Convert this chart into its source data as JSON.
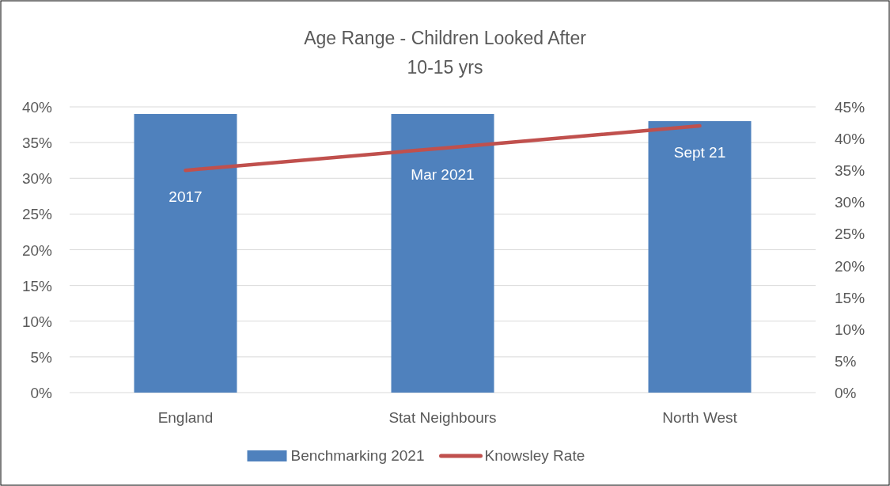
{
  "chart_data": {
    "type": "bar",
    "title": "Age Range - Children Looked After",
    "subtitle": "10-15 yrs",
    "categories": [
      "England",
      "Stat Neighbours",
      "North West"
    ],
    "series": [
      {
        "name": "Benchmarking 2021",
        "color": "#4f81bd",
        "values": [
          39,
          39,
          38
        ]
      },
      {
        "name": "Knowsley Rate",
        "type": "line",
        "axis": "y2",
        "color": "#c0504d",
        "values": [
          35,
          38.5,
          42
        ]
      }
    ],
    "ylim": [
      0,
      40
    ],
    "yticks": [
      {
        "value": 0,
        "label": "0%"
      },
      {
        "value": 5,
        "label": "5%"
      },
      {
        "value": 10,
        "label": "10%"
      },
      {
        "value": 15,
        "label": "15%"
      },
      {
        "value": 20,
        "label": "20%"
      },
      {
        "value": 25,
        "label": "25%"
      },
      {
        "value": 30,
        "label": "30%"
      },
      {
        "value": 35,
        "label": "35%"
      },
      {
        "value": 40,
        "label": "40%"
      }
    ],
    "y2lim": [
      0,
      45
    ],
    "y2ticks": [
      {
        "value": 0,
        "label": "0%"
      },
      {
        "value": 5,
        "label": "5%"
      },
      {
        "value": 10,
        "label": "10%"
      },
      {
        "value": 15,
        "label": "15%"
      },
      {
        "value": 20,
        "label": "20%"
      },
      {
        "value": 25,
        "label": "25%"
      },
      {
        "value": 30,
        "label": "30%"
      },
      {
        "value": 35,
        "label": "35%"
      },
      {
        "value": 40,
        "label": "40%"
      },
      {
        "value": 45,
        "label": "45%"
      }
    ],
    "annotations": [
      "2017",
      "Mar 2021",
      "Sept 21"
    ],
    "grid": "y",
    "legend": "bottom",
    "line_style": "solid",
    "marker": "none"
  }
}
